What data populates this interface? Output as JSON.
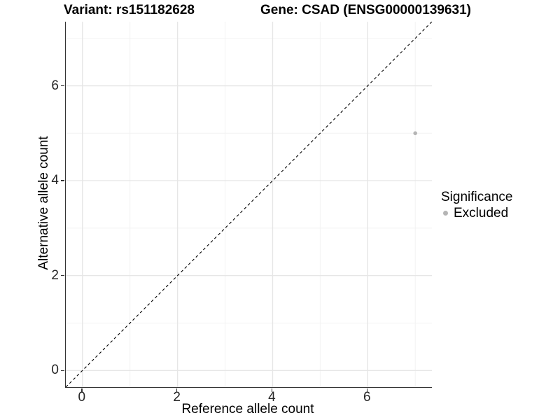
{
  "chart_data": {
    "type": "scatter",
    "title_left": "Variant: rs151182628",
    "title_right": "Gene: CSAD (ENSG00000139631)",
    "xlabel": "Reference allele count",
    "ylabel": "Alternative allele count",
    "xlim": [
      -0.35,
      7.35
    ],
    "ylim": [
      -0.35,
      7.35
    ],
    "xticks": [
      0,
      2,
      4,
      6
    ],
    "yticks": [
      0,
      2,
      4,
      6
    ],
    "grid_major_at": [
      0,
      2,
      4,
      6
    ],
    "grid_minor_at": [
      1,
      3,
      5,
      7
    ],
    "grid": "on",
    "reference_line": "y = x dashed identity line, corner to corner",
    "points": [
      {
        "x": 7,
        "y": 5,
        "significance": "Excluded"
      }
    ],
    "legend": {
      "title": "Significance",
      "position": "right",
      "items": [
        {
          "label": "Excluded",
          "color": "#b5b5b5"
        }
      ]
    },
    "colors": {
      "point": "#b5b5b5",
      "grid_major": "#e6e6e6",
      "grid_minor": "#f2f2f2",
      "axis_line": "#333333",
      "identity_line": "#000000",
      "background": "#ffffff"
    }
  }
}
